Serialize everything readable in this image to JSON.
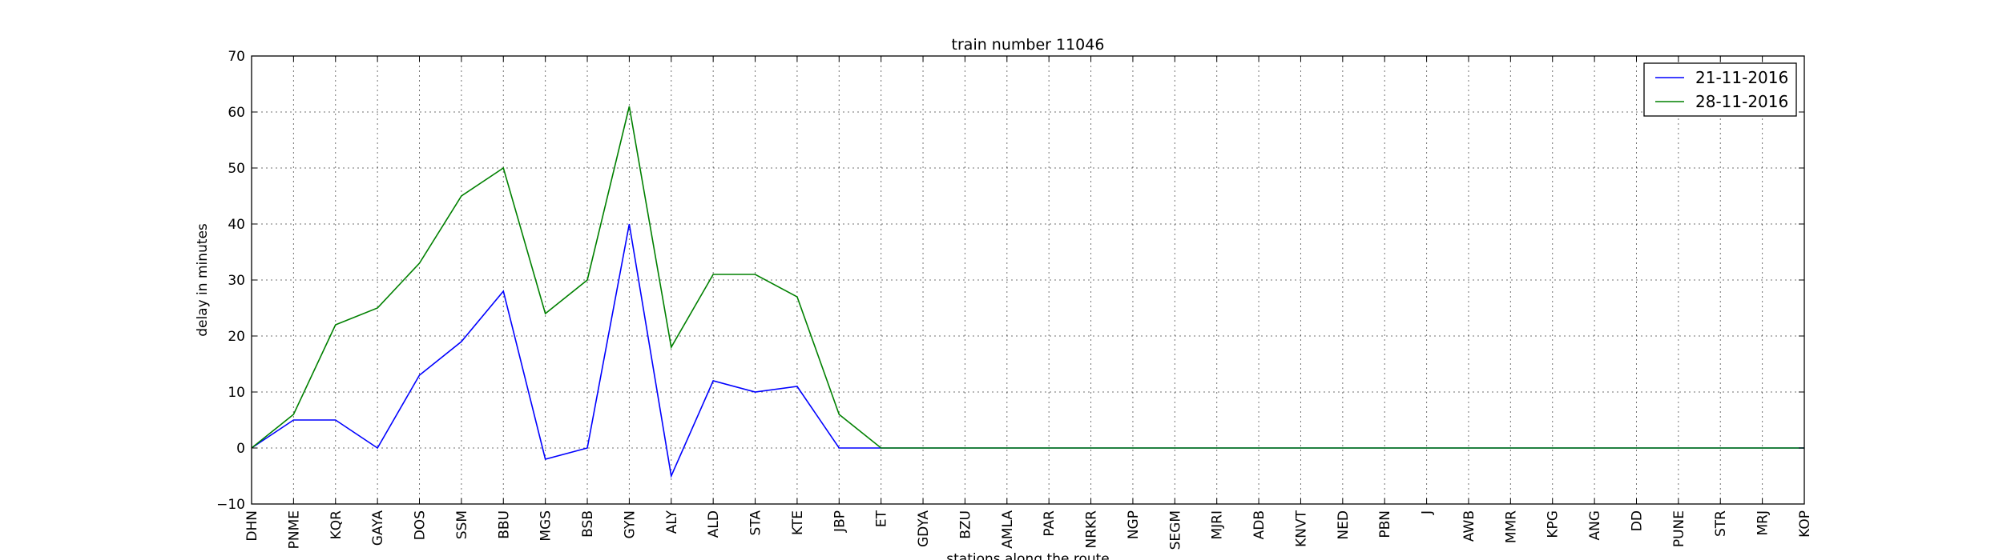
{
  "chart_data": {
    "type": "line",
    "title": "train number 11046",
    "xlabel": "stations along the route",
    "ylabel": "delay in minutes",
    "ylim": [
      -10,
      70
    ],
    "yticks": [
      -10,
      0,
      10,
      20,
      30,
      40,
      50,
      60,
      70
    ],
    "grid": true,
    "legend_position": "top-right",
    "categories": [
      "DHN",
      "PNME",
      "KQR",
      "GAYA",
      "DOS",
      "SSM",
      "BBU",
      "MGS",
      "BSB",
      "GYN",
      "ALY",
      "ALD",
      "STA",
      "KTE",
      "JBP",
      "ET",
      "GDYA",
      "BZU",
      "AMLA",
      "PAR",
      "NRKR",
      "NGP",
      "SEGM",
      "MJRI",
      "ADB",
      "KNVT",
      "NED",
      "PBN",
      "J",
      "AWB",
      "MMR",
      "KPG",
      "ANG",
      "DD",
      "PUNE",
      "STR",
      "MRJ",
      "KOP"
    ],
    "series": [
      {
        "name": "21-11-2016",
        "color": "#0000ff",
        "values": [
          0,
          5,
          5,
          0,
          13,
          19,
          28,
          -2,
          0,
          40,
          -5,
          12,
          10,
          11,
          0,
          0,
          0,
          0,
          0,
          0,
          0,
          0,
          0,
          0,
          0,
          0,
          0,
          0,
          0,
          0,
          0,
          0,
          0,
          0,
          0,
          0,
          0,
          0
        ]
      },
      {
        "name": "28-11-2016",
        "color": "#008000",
        "values": [
          0,
          6,
          22,
          25,
          33,
          45,
          50,
          24,
          30,
          61,
          18,
          31,
          31,
          27,
          6,
          0,
          0,
          0,
          0,
          0,
          0,
          0,
          0,
          0,
          0,
          0,
          0,
          0,
          0,
          0,
          0,
          0,
          0,
          0,
          0,
          0,
          0,
          0
        ]
      }
    ]
  }
}
